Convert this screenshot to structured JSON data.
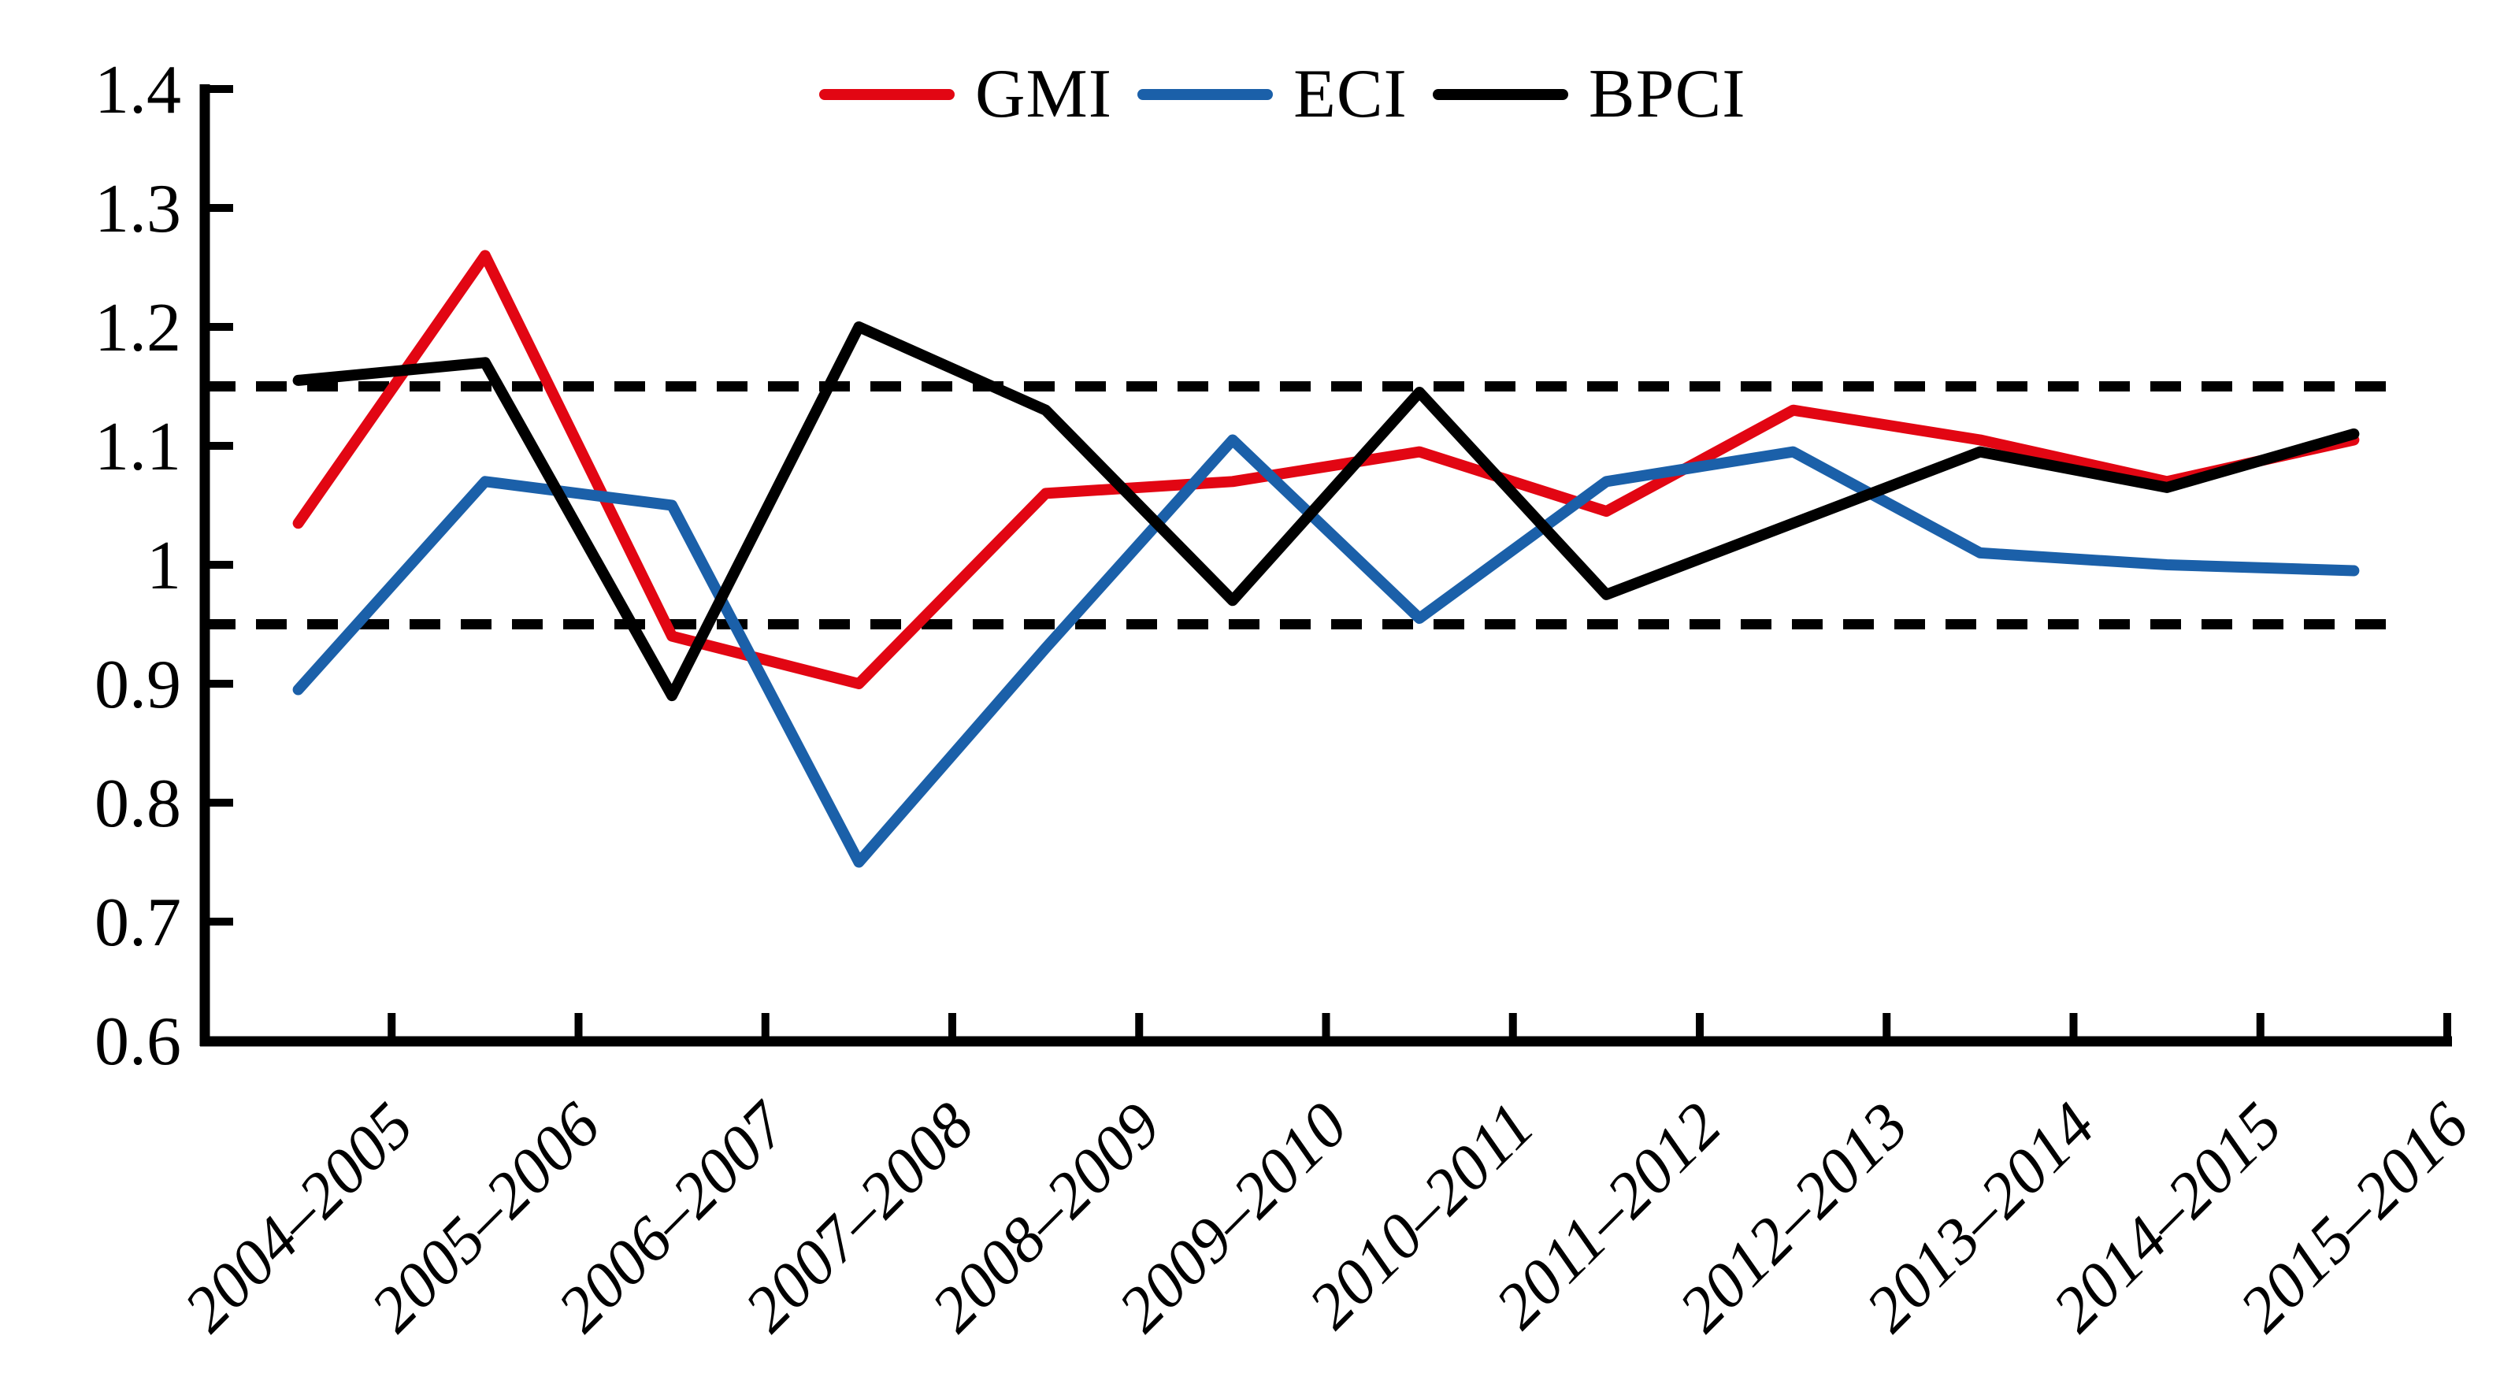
{
  "chart_data": {
    "type": "line",
    "title": "",
    "xlabel": "",
    "ylabel": "",
    "grid": false,
    "categories": [
      "2004–2005",
      "2005–2006",
      "2006–2007",
      "2007–2008",
      "2008–2009",
      "2009–2010",
      "2010–2011",
      "2011–2012",
      "2012–2013",
      "2013–2014",
      "2014–2015",
      "2015–2016"
    ],
    "series": [
      {
        "name": "GMI",
        "color": "#e20613",
        "values": [
          1.035,
          1.26,
          0.94,
          0.9,
          1.06,
          1.07,
          1.095,
          1.045,
          1.13,
          1.105,
          1.07,
          1.105
        ]
      },
      {
        "name": "ECI",
        "color": "#1b60a9",
        "values": [
          0.895,
          1.07,
          1.05,
          0.75,
          0.93,
          1.105,
          0.955,
          1.07,
          1.095,
          1.01,
          1.0,
          0.995
        ]
      },
      {
        "name": "BPCI",
        "color": "#000000",
        "values": [
          1.155,
          1.17,
          0.89,
          1.2,
          1.13,
          0.97,
          1.145,
          0.975,
          1.035,
          1.095,
          1.065,
          1.11
        ]
      }
    ],
    "reference_lines": [
      {
        "value": 1.15,
        "style": "dashed",
        "color": "#000000"
      },
      {
        "value": 0.95,
        "style": "dashed",
        "color": "#000000"
      }
    ],
    "y_axis": {
      "min": 0.6,
      "max": 1.4,
      "tick_step": 0.1,
      "tick_labels": [
        "1.4",
        "1.3",
        "1.2",
        "1.1",
        "1",
        "0.9",
        "0.8",
        "0.7",
        "0.6"
      ]
    },
    "legend": {
      "position": "top-center",
      "entries": [
        "GMI",
        "ECI",
        "BPCI"
      ]
    }
  }
}
